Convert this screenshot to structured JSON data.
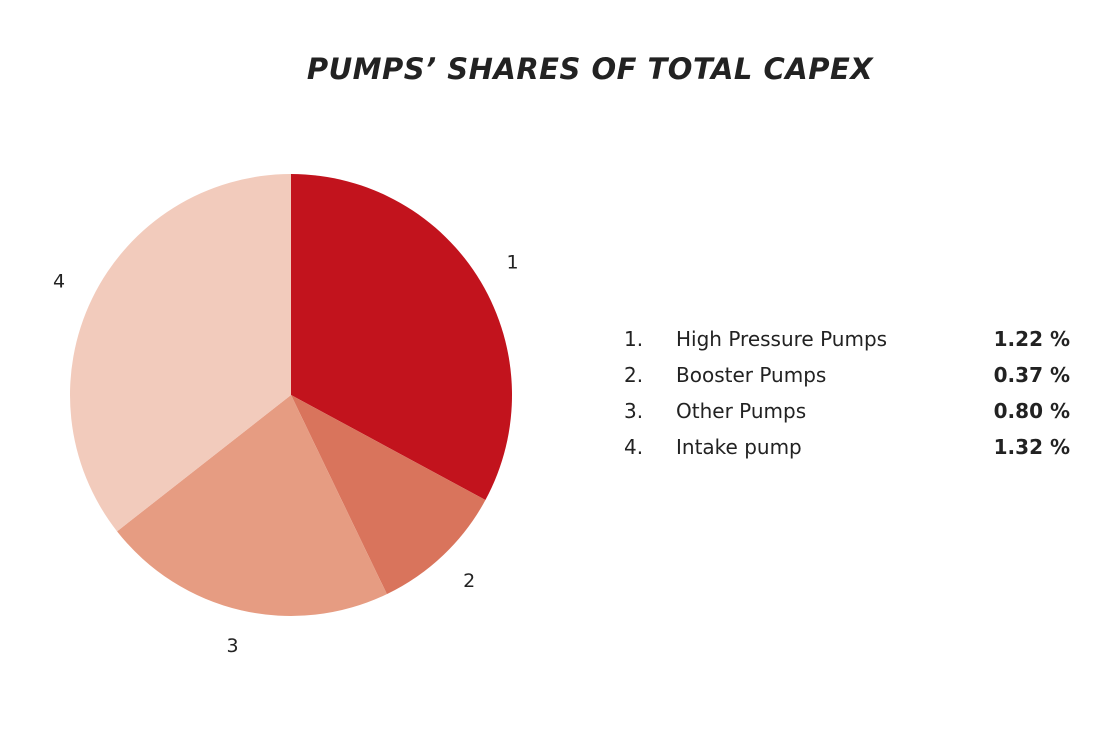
{
  "chart_data": {
    "type": "pie",
    "title": "PUMPS’ SHARES OF TOTAL CAPEX",
    "slices": [
      {
        "label": "1",
        "number": "1.",
        "name": "High Pressure Pumps",
        "value": 1.22,
        "value_text": "1.22 %",
        "color": "#c2131d"
      },
      {
        "label": "2",
        "number": "2.",
        "name": "Booster Pumps",
        "value": 0.37,
        "value_text": "0.37 %",
        "color": "#d9745c"
      },
      {
        "label": "3",
        "number": "3.",
        "name": "Other Pumps",
        "value": 0.8,
        "value_text": "0.80 %",
        "color": "#e69c82"
      },
      {
        "label": "4",
        "number": "4.",
        "name": "Intake pump",
        "value": 1.32,
        "value_text": "1.32 %",
        "color": "#f2cbbc"
      }
    ],
    "start_angle": "12 o'clock",
    "direction": "clockwise",
    "legend_position": "right"
  }
}
